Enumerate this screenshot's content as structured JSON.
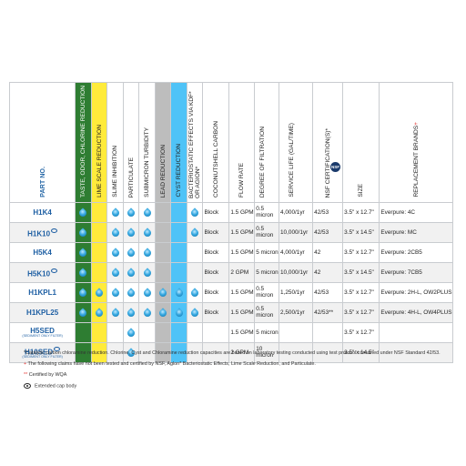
{
  "headers": {
    "part_no": "PART NO.",
    "taste": "TASTE, ODOR, CHLORINE REDUCTION",
    "lime": "LIME SCALE REDUCTION",
    "slime": "SLIME INHIBITION",
    "particulate": "PARTICULATE",
    "submicron": "SUBMICRON TURBIDITY",
    "lead": "LEAD REDUCTION",
    "cyst": "CYST REDUCTION",
    "bacterio": "BACTERIOSTATIC EFFECTS VIA KDF* OR AGION*",
    "coconut": "COCONUTSHELL CARBON",
    "flow": "FLOW RATE",
    "degree": "DEGREE OF FILTRATION",
    "service": "SERVICE LIFE (GAL/TIME)",
    "nsf": "NSF CERTIFICATION(S)*",
    "nsf_badge": "NSF",
    "size": "SIZE",
    "replacement": "REPLACEMENT BRANDS",
    "replacement_mark": "+"
  },
  "rows": [
    {
      "part": "H1K4",
      "sub": "",
      "eye": false,
      "taste": true,
      "lime": false,
      "slime": true,
      "particulate": true,
      "submicron": true,
      "lead": false,
      "cyst": false,
      "bacterio": true,
      "carbon": "Block",
      "flow": "1.5 GPM",
      "degree": "0.5 micron",
      "service": "4,000/1yr",
      "nsf": "42/53",
      "size": "3.5\" x 12.7\"",
      "replacement": "Everpure: 4C"
    },
    {
      "part": "H1K10",
      "sub": "",
      "eye": true,
      "taste": true,
      "lime": false,
      "slime": true,
      "particulate": true,
      "submicron": true,
      "lead": false,
      "cyst": false,
      "bacterio": true,
      "carbon": "Block",
      "flow": "1.5 GPM",
      "degree": "0.5 micron",
      "service": "10,000/1yr",
      "nsf": "42/53",
      "size": "3.5\" x 14.5\"",
      "replacement": "Everpure: MC"
    },
    {
      "part": "H5K4",
      "sub": "",
      "eye": false,
      "taste": true,
      "lime": false,
      "slime": true,
      "particulate": true,
      "submicron": true,
      "lead": false,
      "cyst": false,
      "bacterio": false,
      "carbon": "Block",
      "flow": "1.5 GPM",
      "degree": "5 micron",
      "service": "4,000/1yr",
      "nsf": "42",
      "size": "3.5\" x 12.7\"",
      "replacement": "Everpure: 2CB5"
    },
    {
      "part": "H5K10",
      "sub": "",
      "eye": true,
      "taste": true,
      "lime": false,
      "slime": true,
      "particulate": true,
      "submicron": true,
      "lead": false,
      "cyst": false,
      "bacterio": false,
      "carbon": "Block",
      "flow": "2 GPM",
      "degree": "5 micron",
      "service": "10,000/1yr",
      "nsf": "42",
      "size": "3.5\" x 14.5\"",
      "replacement": "Everpure: 7CB5"
    },
    {
      "part": "H1KPL1",
      "sub": "",
      "eye": false,
      "taste": true,
      "lime": true,
      "slime": true,
      "particulate": true,
      "submicron": true,
      "lead": true,
      "cyst": true,
      "bacterio": true,
      "carbon": "Block",
      "flow": "1.5 GPM",
      "degree": "0.5 micron",
      "service": "1,250/1yr",
      "nsf": "42/53",
      "size": "3.5\" x 12.7\"",
      "replacement": "Everpure: 2H-L, OW2PLUS"
    },
    {
      "part": "H1KPL25",
      "sub": "",
      "eye": false,
      "taste": true,
      "lime": true,
      "slime": true,
      "particulate": true,
      "submicron": true,
      "lead": true,
      "cyst": true,
      "bacterio": true,
      "carbon": "Block",
      "flow": "1.5 GPM",
      "degree": "0.5 micron",
      "service": "2,500/1yr",
      "nsf": "42/53**",
      "size": "3.5\" x 12.7\"",
      "replacement": "Everpure: 4H-L, OW4PLUS"
    },
    {
      "part": "H5SED",
      "sub": "(SEDIMENT ONLY FILTER)",
      "eye": false,
      "taste": false,
      "lime": false,
      "slime": false,
      "particulate": true,
      "submicron": false,
      "lead": false,
      "cyst": false,
      "bacterio": false,
      "carbon": "",
      "flow": "1.5 GPM",
      "degree": "5 micron",
      "service": "",
      "nsf": "",
      "size": "3.5\" x 12.7\"",
      "replacement": ""
    },
    {
      "part": "H10SED",
      "sub": "(SEDIMENT ONLY FILTER)",
      "eye": true,
      "taste": false,
      "lime": false,
      "slime": false,
      "particulate": true,
      "submicron": false,
      "lead": false,
      "cyst": false,
      "bacterio": false,
      "carbon": "",
      "flow": "2 GPM",
      "degree": "10 micron",
      "service": "",
      "nsf": "",
      "size": "3.5\" x 14.5\"",
      "replacement": ""
    }
  ],
  "notes": {
    "catalytic": "*Catalytic carbon chloramine reduction. Chlorine, Cyst and Chloramine reduction capacities are based on laboratory testing conducted using test protocol contained under NSF Standard 42/53.",
    "plus_mark": "+",
    "claims": " The following claims have not been tested and certified by NSF, Aglon* Bacteriostatic Effects, Lime Scale Reduction, and Particulate.",
    "wqa_mark": "**",
    "wqa": " Certified by WQA",
    "extended": "Extended cap body"
  }
}
